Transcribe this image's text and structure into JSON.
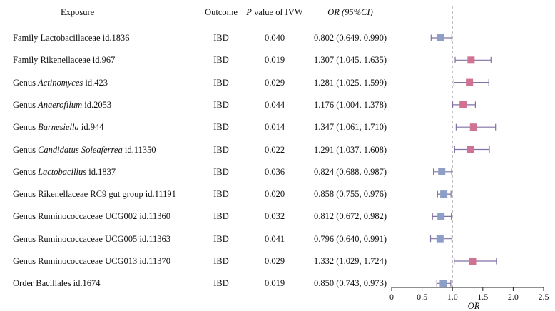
{
  "headers": {
    "exposure": "Exposure",
    "outcome": "Outcome",
    "pvalue_p": "P",
    "pvalue_rest": " value of IVW",
    "or_label": "OR",
    "ci_label": " (95%CI)"
  },
  "rows": [
    {
      "prefix": "Family Lactobacillaceae id.1836",
      "italic": "",
      "suffix": "",
      "outcome": "IBD",
      "p": "0.040",
      "or_text": "0.802 (0.649, 0.990)"
    },
    {
      "prefix": "Family Rikenellaceae id.967",
      "italic": "",
      "suffix": "",
      "outcome": "IBD",
      "p": "0.019",
      "or_text": "1.307 (1.045, 1.635)"
    },
    {
      "prefix": "Genus ",
      "italic": "Actinomyces",
      "suffix": " id.423",
      "outcome": "IBD",
      "p": "0.029",
      "or_text": "1.281 (1.025, 1.599)"
    },
    {
      "prefix": "Genus ",
      "italic": "Anaerofilum",
      "suffix": " id.2053",
      "outcome": "IBD",
      "p": "0.044",
      "or_text": "1.176 (1.004, 1.378)"
    },
    {
      "prefix": "Genus ",
      "italic": "Barnesiella",
      "suffix": " id.944",
      "outcome": "IBD",
      "p": "0.014",
      "or_text": "1.347 (1.061, 1.710)"
    },
    {
      "prefix": "Genus ",
      "italic": "Candidatus Soleaferrea",
      "suffix": " id.11350",
      "outcome": "IBD",
      "p": "0.022",
      "or_text": "1.291 (1.037, 1.608)"
    },
    {
      "prefix": "Genus ",
      "italic": "Lactobacillus",
      "suffix": " id.1837",
      "outcome": "IBD",
      "p": "0.036",
      "or_text": "0.824 (0.688, 0.987)"
    },
    {
      "prefix": "Genus Rikenellaceae RC9 gut group id.11191",
      "italic": "",
      "suffix": "",
      "outcome": "IBD",
      "p": "0.020",
      "or_text": "0.858 (0.755, 0.976)"
    },
    {
      "prefix": "Genus Ruminococcaceae UCG002 id.11360",
      "italic": "",
      "suffix": "",
      "outcome": "IBD",
      "p": "0.032",
      "or_text": "0.812 (0.672, 0.982)"
    },
    {
      "prefix": "Genus Ruminococcaceae UCG005 id.11363",
      "italic": "",
      "suffix": "",
      "outcome": "IBD",
      "p": "0.041",
      "or_text": "0.796 (0.640, 0.991)"
    },
    {
      "prefix": "Genus Ruminococcaceae UCG013 id.11370",
      "italic": "",
      "suffix": "",
      "outcome": "IBD",
      "p": "0.029",
      "or_text": "1.332 (1.029, 1.724)"
    },
    {
      "prefix": "Order Bacillales id.1674",
      "italic": "",
      "suffix": "",
      "outcome": "IBD",
      "p": "0.019",
      "or_text": "0.850 (0.743, 0.973)"
    }
  ],
  "chart_data": {
    "type": "forest",
    "xlabel": "OR",
    "xlim": [
      0,
      2.5
    ],
    "ticks": [
      0,
      0.5,
      1.0,
      1.5,
      2.0,
      2.5
    ],
    "tick_labels": [
      "0",
      "0.5",
      "1.0",
      "1.5",
      "2.0",
      "2.5"
    ],
    "reference_line": 1.0,
    "colors": {
      "protective": "#8e9fc7",
      "risk": "#d07393",
      "whisker": "#8271a6",
      "ref": "#b0b0b0"
    },
    "points": [
      {
        "or": 0.802,
        "lo": 0.649,
        "hi": 0.99
      },
      {
        "or": 1.307,
        "lo": 1.045,
        "hi": 1.635
      },
      {
        "or": 1.281,
        "lo": 1.025,
        "hi": 1.599
      },
      {
        "or": 1.176,
        "lo": 1.004,
        "hi": 1.378
      },
      {
        "or": 1.347,
        "lo": 1.061,
        "hi": 1.71
      },
      {
        "or": 1.291,
        "lo": 1.037,
        "hi": 1.608
      },
      {
        "or": 0.824,
        "lo": 0.688,
        "hi": 0.987
      },
      {
        "or": 0.858,
        "lo": 0.755,
        "hi": 0.976
      },
      {
        "or": 0.812,
        "lo": 0.672,
        "hi": 0.982
      },
      {
        "or": 0.796,
        "lo": 0.64,
        "hi": 0.991
      },
      {
        "or": 1.332,
        "lo": 1.029,
        "hi": 1.724
      },
      {
        "or": 0.85,
        "lo": 0.743,
        "hi": 0.973
      }
    ]
  }
}
